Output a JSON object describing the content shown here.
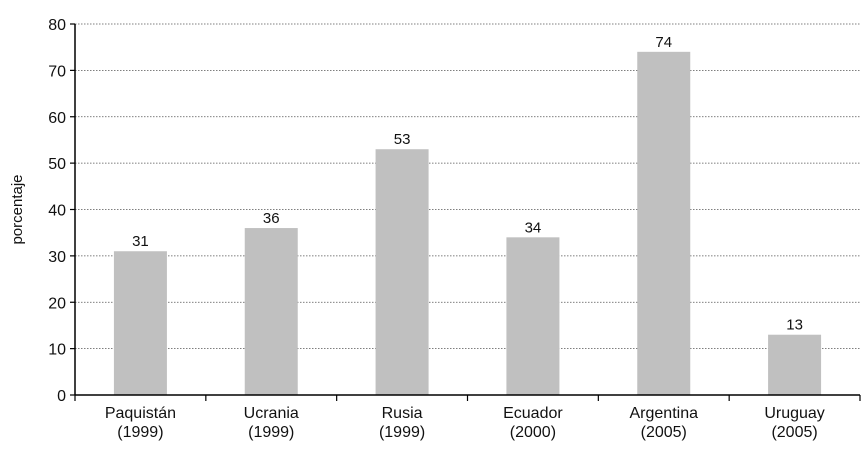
{
  "chart_data": {
    "type": "bar",
    "title": "",
    "xlabel": "",
    "ylabel": "porcentaje",
    "ylim": [
      0,
      80
    ],
    "yticks": [
      0,
      10,
      20,
      30,
      40,
      50,
      60,
      70,
      80
    ],
    "grid": true,
    "legend": "none",
    "bar_color": "#c0c0c0",
    "categories": [
      {
        "name": "Paquistán",
        "year": "(1999)"
      },
      {
        "name": "Ucrania",
        "year": "(1999)"
      },
      {
        "name": "Rusia",
        "year": "(1999)"
      },
      {
        "name": "Ecuador",
        "year": "(2000)"
      },
      {
        "name": "Argentina",
        "year": "(2005)"
      },
      {
        "name": "Uruguay",
        "year": "(2005)"
      }
    ],
    "values": [
      31,
      36,
      53,
      34,
      74,
      13
    ]
  }
}
